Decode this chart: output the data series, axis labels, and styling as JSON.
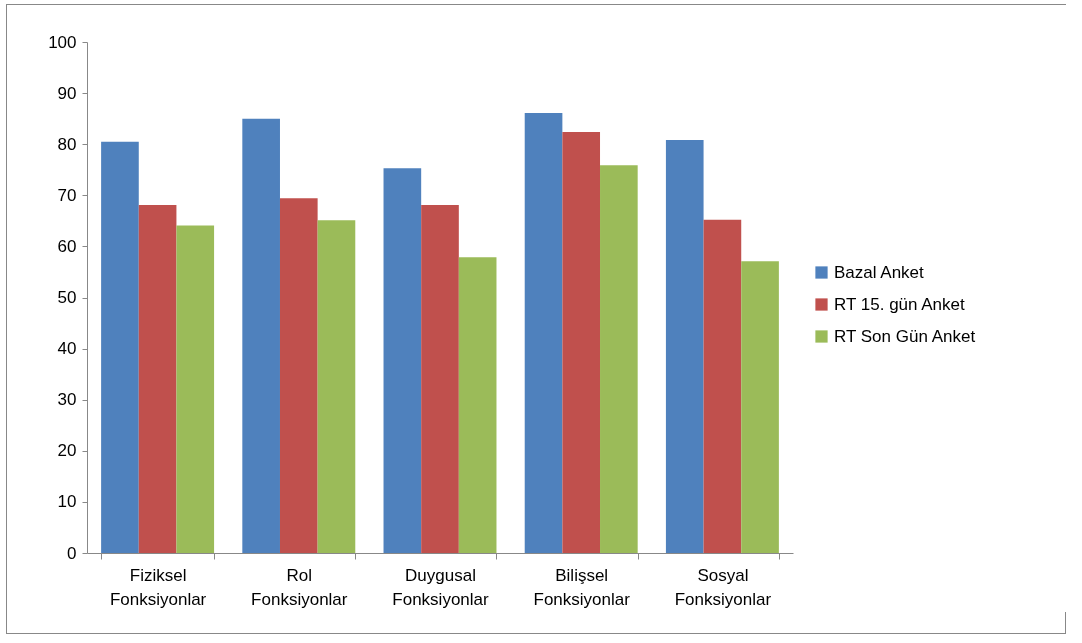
{
  "chart_data": {
    "type": "bar",
    "categories": [
      "Fiziksel Fonksiyonlar",
      "Rol Fonksiyonlar",
      "Duygusal Fonksiyonlar",
      "Bilişsel Fonksiyonlar",
      "Sosyal Fonksiyonlar"
    ],
    "series": [
      {
        "name": "Bazal Anket",
        "color": "#4f81bd",
        "values": [
          80.5,
          85,
          75.3,
          86.1,
          80.8
        ]
      },
      {
        "name": "RT 15. gün Anket",
        "color": "#c0504d",
        "values": [
          68.1,
          69.4,
          68.1,
          82.4,
          65.2
        ]
      },
      {
        "name": "RT Son Gün Anket",
        "color": "#9bbb59",
        "values": [
          64.1,
          65.1,
          57.9,
          75.9,
          57.1
        ]
      }
    ],
    "ylim": [
      0,
      100
    ],
    "yticks": [
      0,
      10,
      20,
      30,
      40,
      50,
      60,
      70,
      80,
      90,
      100
    ],
    "grid": false,
    "legend": "right"
  }
}
